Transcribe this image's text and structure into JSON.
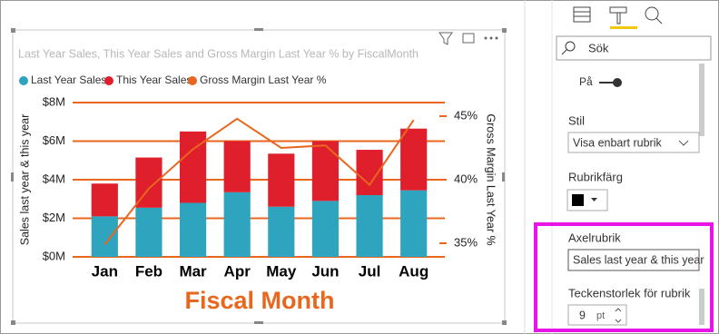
{
  "chart_data": {
    "type": "combo",
    "title": "Last Year Sales, This Year Sales and Gross Margin Last Year % by FiscalMonth",
    "x_title": "Fiscal Month",
    "y_title": "Sales last year & this year",
    "y2_title": "Gross Margin Last Year %",
    "categories": [
      "Jan",
      "Feb",
      "Mar",
      "Apr",
      "May",
      "Jun",
      "Jul",
      "Aug"
    ],
    "series": [
      {
        "name": "Last Year Sales",
        "color": "#2ea4bf",
        "stack": true,
        "values": [
          2100000,
          2550000,
          2800000,
          3350000,
          2600000,
          2900000,
          3200000,
          3450000
        ]
      },
      {
        "name": "This Year Sales",
        "color": "#e01f2d",
        "stack": true,
        "values": [
          1700000,
          2600000,
          3700000,
          2650000,
          2750000,
          3100000,
          2350000,
          3200000
        ]
      },
      {
        "name": "Gross Margin Last Year %",
        "color": "#e8661d",
        "axis": "y2",
        "line": true,
        "values": [
          34.9,
          39.3,
          42.4,
          44.8,
          42.5,
          42.7,
          39.6,
          44.7
        ]
      }
    ],
    "ylim": [
      0,
      8000000
    ],
    "yticks": [
      {
        "value": 0,
        "label": "$0M"
      },
      {
        "value": 2000000,
        "label": "$2M"
      },
      {
        "value": 4000000,
        "label": "$4M"
      },
      {
        "value": 6000000,
        "label": "$6M"
      },
      {
        "value": 8000000,
        "label": "$8M"
      }
    ],
    "y2lim": [
      33.93,
      46.07
    ],
    "y2ticks": [
      {
        "value": 35,
        "label": "35%"
      },
      {
        "value": 40,
        "label": "40%"
      },
      {
        "value": 45,
        "label": "45%"
      }
    ],
    "grid": true,
    "grid_color": "#e8661d"
  },
  "format_pane": {
    "search": "Sök",
    "toggle": "På",
    "style_label": "Stil",
    "style_value": "Visa enbart rubrik",
    "color_label": "Rubrikfärg",
    "axis_title_label": "Axelrubrik",
    "axis_title_value": "Sales last year & this year",
    "font_size_label": "Teckenstorlek för rubrik",
    "font_size_value": "9",
    "font_size_unit": "pt"
  }
}
